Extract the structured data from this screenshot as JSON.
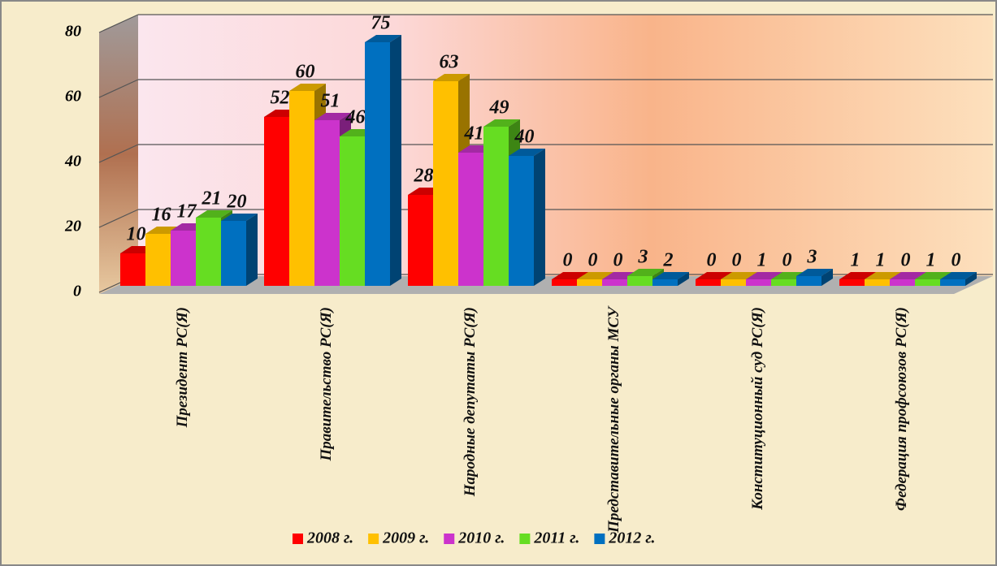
{
  "chart_data": {
    "type": "bar3d",
    "categories": [
      "Президент РС(Я)",
      "Правительство РС(Я)",
      "Народные депутаты РС(Я)",
      "Представительные органы МСУ",
      "Конституционный суд РС(Я)",
      "Федерация профсоюзов РС(Я)"
    ],
    "series": [
      {
        "name": "2008 г.",
        "color": "#ff0000",
        "values": [
          10,
          52,
          28,
          0,
          0,
          1
        ]
      },
      {
        "name": "2009 г.",
        "color": "#ffc000",
        "values": [
          16,
          60,
          63,
          0,
          0,
          1
        ]
      },
      {
        "name": "2010 г.",
        "color": "#cc33cc",
        "values": [
          17,
          51,
          41,
          0,
          1,
          0
        ]
      },
      {
        "name": "2011 г.",
        "color": "#66dd22",
        "values": [
          21,
          46,
          49,
          3,
          0,
          1
        ]
      },
      {
        "name": "2012 г.",
        "color": "#0070c0",
        "values": [
          20,
          75,
          40,
          2,
          3,
          0
        ]
      }
    ],
    "ylim": [
      0,
      80
    ],
    "yticks": [
      0,
      20,
      40,
      60,
      80
    ],
    "grid": true,
    "legend": "bottom"
  }
}
